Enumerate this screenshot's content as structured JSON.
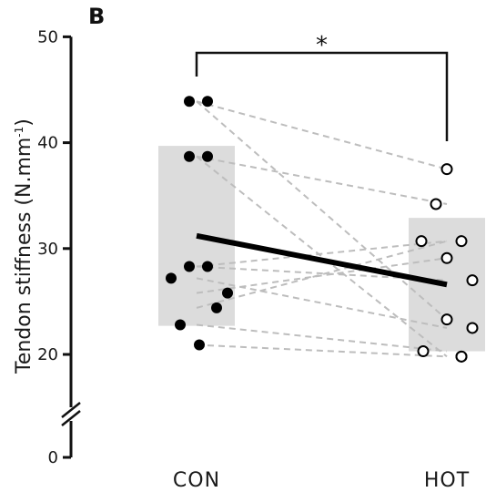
{
  "panel_letter": "B",
  "colors": {
    "iqr_box": "#dcdcdc",
    "pair_line": "#bdbdbd",
    "mean_line": "#000000",
    "con_marker": "#000000",
    "hot_marker_fill": "#ffffff",
    "hot_marker_stroke": "#000000",
    "axis": "#111111"
  },
  "chart_data": {
    "type": "scatter",
    "ylabel_main": "Tendon stiffness (N.mm",
    "ylabel_sup": "-1",
    "ylabel_end": ")",
    "categories": [
      "CON",
      "HOT"
    ],
    "ylim": [
      0,
      50
    ],
    "axis_break_between": [
      0,
      20
    ],
    "yticks": [
      0,
      20,
      30,
      40,
      50
    ],
    "ytick_labels": [
      "0",
      "20",
      "30",
      "40",
      "50"
    ],
    "grid": false,
    "pairs": [
      [
        43.9,
        37.5
      ],
      [
        43.9,
        23.3
      ],
      [
        38.7,
        34.2
      ],
      [
        38.7,
        19.8
      ],
      [
        28.3,
        30.7
      ],
      [
        28.3,
        27.0
      ],
      [
        27.2,
        22.5
      ],
      [
        25.8,
        29.1
      ],
      [
        24.4,
        30.7
      ],
      [
        22.8,
        20.3
      ],
      [
        20.9,
        19.8
      ]
    ],
    "mean": [
      31.2,
      26.6
    ],
    "boxes": [
      {
        "category": "CON",
        "low": 22.7,
        "high": 39.7
      },
      {
        "category": "HOT",
        "low": 20.3,
        "high": 32.9
      }
    ],
    "significance": {
      "label": "*",
      "between": [
        "CON",
        "HOT"
      ]
    }
  }
}
